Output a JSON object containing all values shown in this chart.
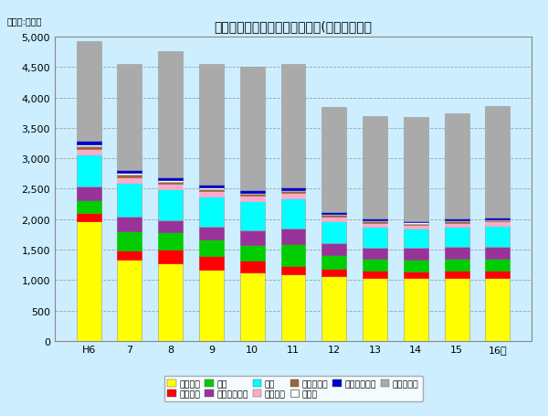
{
  "title": "観光レクリエーション入込客数(実数）の推移",
  "unit_label": "（単位:万人）",
  "x_labels": [
    "H6",
    "7",
    "8",
    "9",
    "10",
    "11",
    "12",
    "13",
    "14",
    "15",
    "16年"
  ],
  "ylim": [
    0,
    5000
  ],
  "yticks": [
    0,
    500,
    1000,
    1500,
    2000,
    2500,
    3000,
    3500,
    4000,
    4500,
    5000
  ],
  "background_color": "#cceeff",
  "series": [
    {
      "label": "伊勢志摩",
      "color": "#ffff00",
      "values": [
        1970,
        1330,
        1280,
        1170,
        1120,
        1090,
        1060,
        1040,
        1030,
        1040,
        1040
      ]
    },
    {
      "label": "吉野熊野",
      "color": "#ff0000",
      "values": [
        130,
        155,
        220,
        225,
        200,
        145,
        125,
        115,
        108,
        118,
        118
      ]
    },
    {
      "label": "鈴鹿",
      "color": "#00cc00",
      "values": [
        215,
        310,
        280,
        270,
        260,
        360,
        220,
        190,
        195,
        200,
        195
      ]
    },
    {
      "label": "室生赤目青山",
      "color": "#993399",
      "values": [
        215,
        250,
        200,
        210,
        240,
        245,
        195,
        190,
        195,
        195,
        200
      ]
    },
    {
      "label": "水郷",
      "color": "#00ffff",
      "values": [
        530,
        545,
        510,
        495,
        480,
        500,
        370,
        340,
        315,
        325,
        345
      ]
    },
    {
      "label": "伊勢の海",
      "color": "#ffaacc",
      "values": [
        95,
        100,
        90,
        85,
        85,
        90,
        72,
        68,
        62,
        62,
        62
      ]
    },
    {
      "label": "赤目－志峡",
      "color": "#996633",
      "values": [
        48,
        43,
        38,
        38,
        33,
        33,
        28,
        26,
        23,
        23,
        23
      ]
    },
    {
      "label": "香肌峡",
      "color": "#ffffff",
      "values": [
        28,
        26,
        23,
        23,
        20,
        20,
        18,
        16,
        16,
        16,
        16
      ]
    },
    {
      "label": "奥伊勢宮川峡",
      "color": "#0000cc",
      "values": [
        58,
        52,
        48,
        48,
        43,
        43,
        32,
        29,
        27,
        27,
        27
      ]
    },
    {
      "label": "自然公園外",
      "color": "#aaaaaa",
      "values": [
        1640,
        1740,
        2075,
        1980,
        2020,
        2020,
        1730,
        1685,
        1715,
        1730,
        1840
      ]
    }
  ]
}
